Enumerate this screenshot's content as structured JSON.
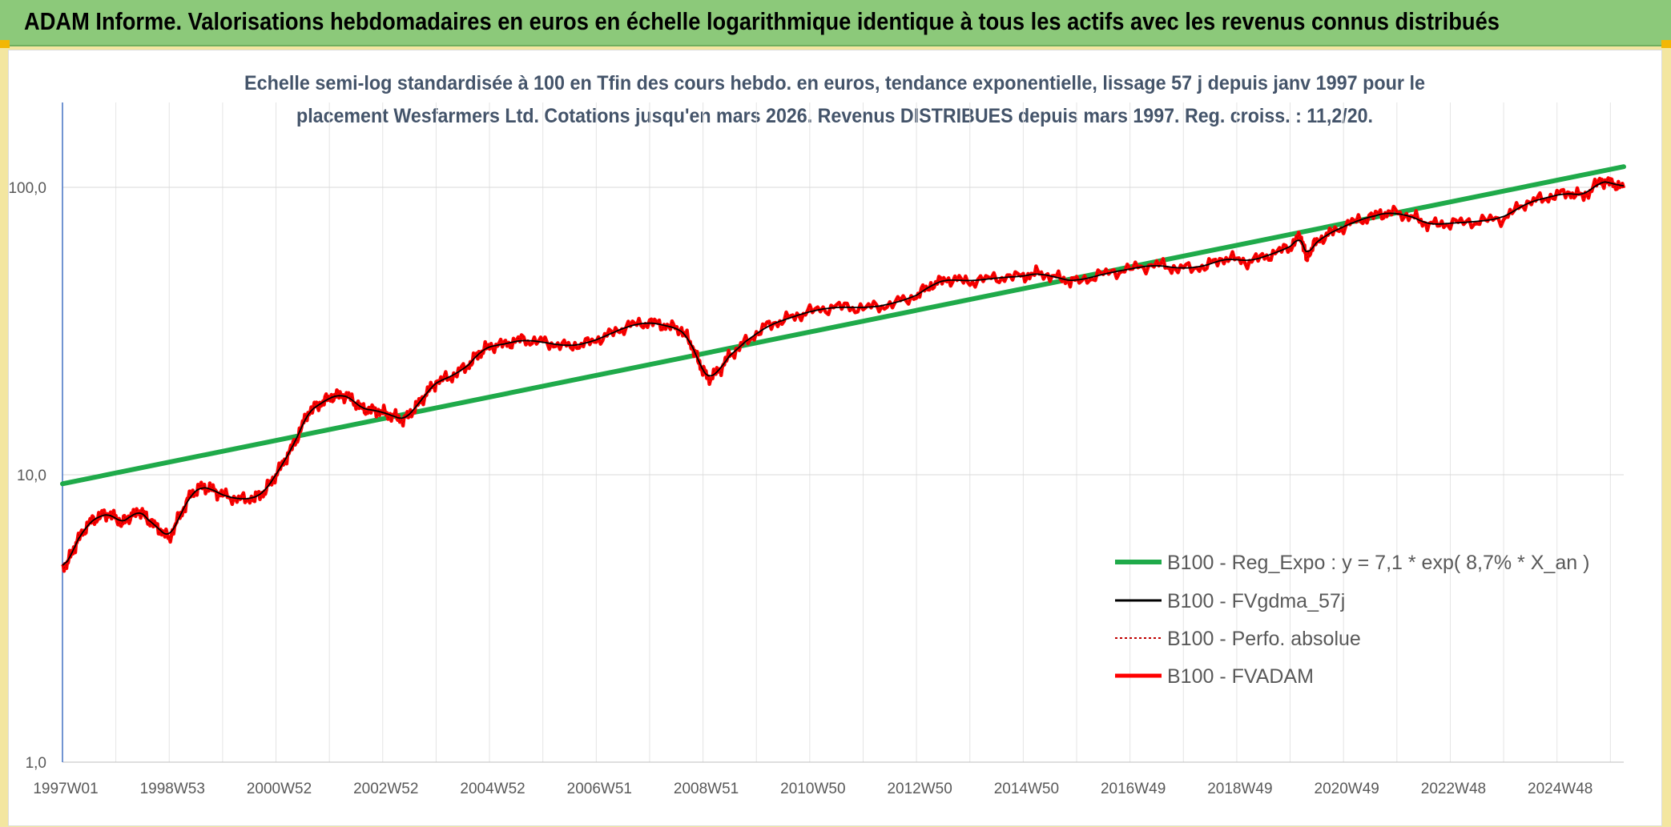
{
  "header": {
    "title": "ADAM Informe. Valorisations hebdomadaires en euros en échelle logarithmique identique à tous les actifs avec les revenus connus distribués"
  },
  "chart_data": {
    "type": "line",
    "subtitle_line1": "Echelle semi-log standardisée à 100 en Tfin des cours hebdo. en euros, tendance exponentielle, lissage 57 j depuis janv 1997 pour le",
    "subtitle_line2": "placement Wesfarmers Ltd. Cotations jusqu'en mars 2026. Revenus DISTRIBUES depuis mars 1997. Reg. croiss. : 11,2/20.",
    "y_scale": "log",
    "ylim": [
      1,
      200
    ],
    "y_ticks": [
      "1,0",
      "10,0",
      "100,0"
    ],
    "x_range": [
      1997.0,
      2026.25
    ],
    "x_ticks": [
      {
        "label": "1997W01",
        "year": 1997.0
      },
      {
        "label": "1998W53",
        "year": 1999.0
      },
      {
        "label": "2000W52",
        "year": 2001.0
      },
      {
        "label": "2002W52",
        "year": 2003.0
      },
      {
        "label": "2004W52",
        "year": 2005.0
      },
      {
        "label": "2006W51",
        "year": 2007.0
      },
      {
        "label": "2008W51",
        "year": 2009.0
      },
      {
        "label": "2010W50",
        "year": 2011.0
      },
      {
        "label": "2012W50",
        "year": 2013.0
      },
      {
        "label": "2014W50",
        "year": 2015.0
      },
      {
        "label": "2016W49",
        "year": 2017.0
      },
      {
        "label": "2018W49",
        "year": 2019.0
      },
      {
        "label": "2020W49",
        "year": 2021.0
      },
      {
        "label": "2022W48",
        "year": 2023.0
      },
      {
        "label": "2024W48",
        "year": 2025.0
      }
    ],
    "grid": true,
    "legend_position": "bottom-right",
    "colors": {
      "trend": "#1faa4a",
      "smooth": "#000000",
      "perfo": "#c00000",
      "fvadam": "#ff0000"
    },
    "series": [
      {
        "name": "B100 - Reg_Expo : y = 7,1 * exp( 8,7% *  X_an )",
        "key": "trend",
        "values": [
          [
            1997.0,
            9.3
          ],
          [
            2026.25,
            118
          ]
        ]
      },
      {
        "name": "B100 - FVgdma_57j",
        "key": "smooth"
      },
      {
        "name": "B100 - Perfo. absolue",
        "key": "perfo"
      },
      {
        "name": "B100 - FVADAM",
        "key": "fvadam",
        "values": [
          [
            1997.0,
            4.7
          ],
          [
            1997.15,
            5.2
          ],
          [
            1997.3,
            6.0
          ],
          [
            1997.5,
            6.8
          ],
          [
            1997.7,
            7.2
          ],
          [
            1997.9,
            7.3
          ],
          [
            1998.1,
            6.8
          ],
          [
            1998.25,
            7.1
          ],
          [
            1998.45,
            7.5
          ],
          [
            1998.6,
            7.0
          ],
          [
            1998.8,
            6.5
          ],
          [
            1999.0,
            6.0
          ],
          [
            1999.2,
            7.2
          ],
          [
            1999.4,
            8.5
          ],
          [
            1999.6,
            9.1
          ],
          [
            1999.8,
            8.9
          ],
          [
            2000.0,
            8.5
          ],
          [
            2000.3,
            8.2
          ],
          [
            2000.6,
            8.3
          ],
          [
            2000.8,
            8.8
          ],
          [
            2001.0,
            10.0
          ],
          [
            2001.2,
            11.5
          ],
          [
            2001.4,
            13.5
          ],
          [
            2001.6,
            16.5
          ],
          [
            2001.8,
            17.5
          ],
          [
            2002.0,
            18.5
          ],
          [
            2002.2,
            19.0
          ],
          [
            2002.4,
            18.5
          ],
          [
            2002.6,
            17.0
          ],
          [
            2002.8,
            16.8
          ],
          [
            2003.0,
            16.5
          ],
          [
            2003.2,
            16.0
          ],
          [
            2003.4,
            15.5
          ],
          [
            2003.6,
            17.0
          ],
          [
            2003.8,
            19.0
          ],
          [
            2004.0,
            21.0
          ],
          [
            2004.3,
            22.0
          ],
          [
            2004.6,
            24.0
          ],
          [
            2004.8,
            26.5
          ],
          [
            2005.0,
            28.0
          ],
          [
            2005.3,
            28.5
          ],
          [
            2005.6,
            29.5
          ],
          [
            2006.0,
            29.0
          ],
          [
            2006.4,
            28.0
          ],
          [
            2006.8,
            28.5
          ],
          [
            2007.2,
            30.5
          ],
          [
            2007.6,
            33.0
          ],
          [
            2008.0,
            34.0
          ],
          [
            2008.3,
            33.0
          ],
          [
            2008.6,
            32.0
          ],
          [
            2008.8,
            28.0
          ],
          [
            2008.95,
            24.0
          ],
          [
            2009.1,
            21.5
          ],
          [
            2009.3,
            23.0
          ],
          [
            2009.5,
            26.0
          ],
          [
            2009.8,
            29.0
          ],
          [
            2010.2,
            33.0
          ],
          [
            2010.6,
            35.0
          ],
          [
            2011.0,
            37.0
          ],
          [
            2011.5,
            38.5
          ],
          [
            2012.0,
            38.0
          ],
          [
            2012.5,
            39.0
          ],
          [
            2013.0,
            42.0
          ],
          [
            2013.3,
            46.0
          ],
          [
            2013.6,
            48.0
          ],
          [
            2014.0,
            47.0
          ],
          [
            2014.5,
            48.5
          ],
          [
            2015.0,
            49.0
          ],
          [
            2015.3,
            50.5
          ],
          [
            2015.7,
            48.0
          ],
          [
            2016.0,
            47.0
          ],
          [
            2016.5,
            50.0
          ],
          [
            2017.0,
            52.0
          ],
          [
            2017.5,
            54.0
          ],
          [
            2017.9,
            52.0
          ],
          [
            2018.4,
            53.0
          ],
          [
            2018.8,
            57.0
          ],
          [
            2019.2,
            55.0
          ],
          [
            2019.6,
            58.0
          ],
          [
            2020.0,
            62.0
          ],
          [
            2020.2,
            68.0
          ],
          [
            2020.3,
            57.0
          ],
          [
            2020.5,
            65.0
          ],
          [
            2020.8,
            70.0
          ],
          [
            2021.2,
            76.0
          ],
          [
            2021.6,
            80.0
          ],
          [
            2021.9,
            82.0
          ],
          [
            2022.3,
            79.0
          ],
          [
            2022.6,
            74.0
          ],
          [
            2023.0,
            75.0
          ],
          [
            2023.5,
            76.0
          ],
          [
            2024.0,
            78.0
          ],
          [
            2024.4,
            88.0
          ],
          [
            2024.8,
            92.0
          ],
          [
            2025.2,
            96.0
          ],
          [
            2025.5,
            93.0
          ],
          [
            2025.8,
            105.0
          ],
          [
            2026.0,
            104.0
          ],
          [
            2026.25,
            100.0
          ]
        ]
      }
    ]
  }
}
